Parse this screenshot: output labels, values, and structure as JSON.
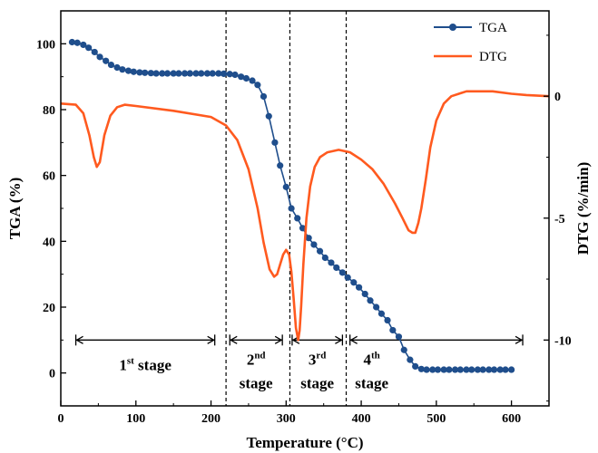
{
  "colors": {
    "tga": "#1f4e8c",
    "dtg": "#ff5a1f",
    "axis": "#000000"
  },
  "chart_data": {
    "type": "line",
    "xlabel": "Temperature (°C)",
    "ylabel_left": "TGA (%)",
    "ylabel_right": "DTG (%/min)",
    "xlim": [
      0,
      650
    ],
    "ylim_left": [
      -10,
      110
    ],
    "ylim_right": [
      -12.7,
      3.5
    ],
    "x_ticks": [
      0,
      100,
      200,
      300,
      400,
      500,
      600
    ],
    "y_ticks_left": [
      0,
      20,
      40,
      60,
      80,
      100
    ],
    "y_ticks_right": [
      0,
      -5,
      -10
    ],
    "grid": false,
    "legend_position": "top-right",
    "series": [
      {
        "name": "TGA",
        "axis": "left",
        "marker": "circle",
        "x": [
          15,
          22,
          30,
          37,
          45,
          52,
          60,
          67,
          75,
          82,
          90,
          97,
          105,
          112,
          120,
          127,
          135,
          142,
          150,
          157,
          165,
          172,
          180,
          187,
          195,
          202,
          210,
          217,
          225,
          232,
          240,
          247,
          255,
          262,
          270,
          277,
          285,
          292,
          300,
          307,
          315,
          322,
          330,
          337,
          345,
          352,
          360,
          367,
          375,
          382,
          390,
          397,
          405,
          412,
          420,
          427,
          435,
          442,
          450,
          457,
          465,
          472,
          480,
          487,
          495,
          502,
          510,
          517,
          525,
          532,
          540,
          547,
          555,
          562,
          570,
          577,
          585,
          592,
          600
        ],
        "y": [
          100.5,
          100.3,
          99.7,
          98.8,
          97.5,
          96.0,
          94.8,
          93.6,
          92.8,
          92.2,
          91.8,
          91.5,
          91.3,
          91.2,
          91.1,
          91.0,
          91.0,
          91.0,
          91.0,
          91.0,
          91.0,
          91.0,
          91.0,
          91.0,
          91.0,
          91.0,
          91.0,
          90.9,
          90.8,
          90.6,
          90.0,
          89.5,
          88.8,
          87.5,
          84.0,
          78.0,
          70.0,
          63.0,
          56.5,
          50.0,
          47.0,
          44.0,
          41.0,
          39.0,
          37.0,
          35.0,
          33.5,
          32.0,
          30.5,
          29.0,
          27.5,
          26.0,
          24.0,
          22.0,
          20.0,
          18.0,
          16.0,
          13.0,
          11.0,
          7.0,
          4.0,
          2.0,
          1.2,
          1.0,
          1.0,
          1.0,
          1.0,
          1.0,
          1.0,
          1.0,
          1.0,
          1.0,
          1.0,
          1.0,
          1.0,
          1.0,
          1.0,
          1.0,
          1.0
        ]
      },
      {
        "name": "DTG",
        "axis": "right",
        "marker": "none",
        "x": [
          0,
          20,
          30,
          38,
          44,
          48,
          52,
          58,
          66,
          75,
          85,
          100,
          150,
          200,
          220,
          235,
          250,
          262,
          270,
          278,
          284,
          288,
          292,
          296,
          300,
          304,
          307,
          310,
          313,
          316,
          318,
          320,
          323,
          327,
          332,
          338,
          345,
          355,
          370,
          385,
          400,
          415,
          430,
          445,
          455,
          463,
          468,
          472,
          476,
          480,
          486,
          492,
          500,
          510,
          520,
          530,
          540,
          555,
          575,
          600,
          620,
          650
        ],
        "y": [
          -0.3,
          -0.35,
          -0.7,
          -1.6,
          -2.5,
          -2.9,
          -2.7,
          -1.6,
          -0.8,
          -0.45,
          -0.35,
          -0.4,
          -0.6,
          -0.85,
          -1.2,
          -1.8,
          -3.0,
          -4.6,
          -6.0,
          -7.1,
          -7.4,
          -7.3,
          -6.9,
          -6.5,
          -6.3,
          -6.5,
          -7.2,
          -8.3,
          -9.5,
          -10.0,
          -9.6,
          -8.6,
          -6.9,
          -5.0,
          -3.7,
          -2.9,
          -2.5,
          -2.3,
          -2.2,
          -2.3,
          -2.6,
          -3.0,
          -3.6,
          -4.4,
          -5.0,
          -5.5,
          -5.6,
          -5.6,
          -5.2,
          -4.6,
          -3.4,
          -2.1,
          -1.0,
          -0.3,
          0.0,
          0.1,
          0.2,
          0.2,
          0.2,
          0.1,
          0.05,
          0.0
        ]
      }
    ],
    "dividers_x": [
      220,
      305,
      380
    ],
    "stages": [
      {
        "base": "1",
        "sup": "st",
        "word": "stage",
        "x_start": 20,
        "x_end": 205,
        "layout": "inline"
      },
      {
        "base": "2",
        "sup": "nd",
        "word": "stage",
        "x_start": 225,
        "x_end": 295,
        "layout": "stacked"
      },
      {
        "base": "3",
        "sup": "rd",
        "word": "stage",
        "x_start": 308,
        "x_end": 375,
        "layout": "stacked"
      },
      {
        "base": "4",
        "sup": "th",
        "word": "stage",
        "x_start": 385,
        "x_end": 615,
        "layout": "stacked"
      }
    ],
    "stage_arrow_tga": 10
  }
}
